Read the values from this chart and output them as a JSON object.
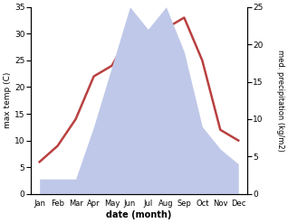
{
  "months": [
    "Jan",
    "Feb",
    "Mar",
    "Apr",
    "May",
    "Jun",
    "Jul",
    "Aug",
    "Sep",
    "Oct",
    "Nov",
    "Dec"
  ],
  "month_x": [
    0,
    1,
    2,
    3,
    4,
    5,
    6,
    7,
    8,
    9,
    10,
    11
  ],
  "max_temp": [
    6,
    9,
    14,
    22,
    24,
    30,
    28,
    31,
    33,
    25,
    12,
    10
  ],
  "precipitation": [
    2,
    2,
    2,
    9,
    17,
    25,
    22,
    25,
    19,
    9,
    6,
    4
  ],
  "temp_color": "#b94040",
  "precip_color_fill": "#bfc8e8",
  "ylabel_left": "max temp (C)",
  "ylabel_right": "med. precipitation (kg/m2)",
  "xlabel": "date (month)",
  "ylim_left": [
    0,
    35
  ],
  "ylim_right": [
    0,
    25
  ],
  "yticks_left": [
    0,
    5,
    10,
    15,
    20,
    25,
    30,
    35
  ],
  "yticks_right": [
    0,
    5,
    10,
    15,
    20,
    25
  ],
  "background_color": "#ffffff"
}
